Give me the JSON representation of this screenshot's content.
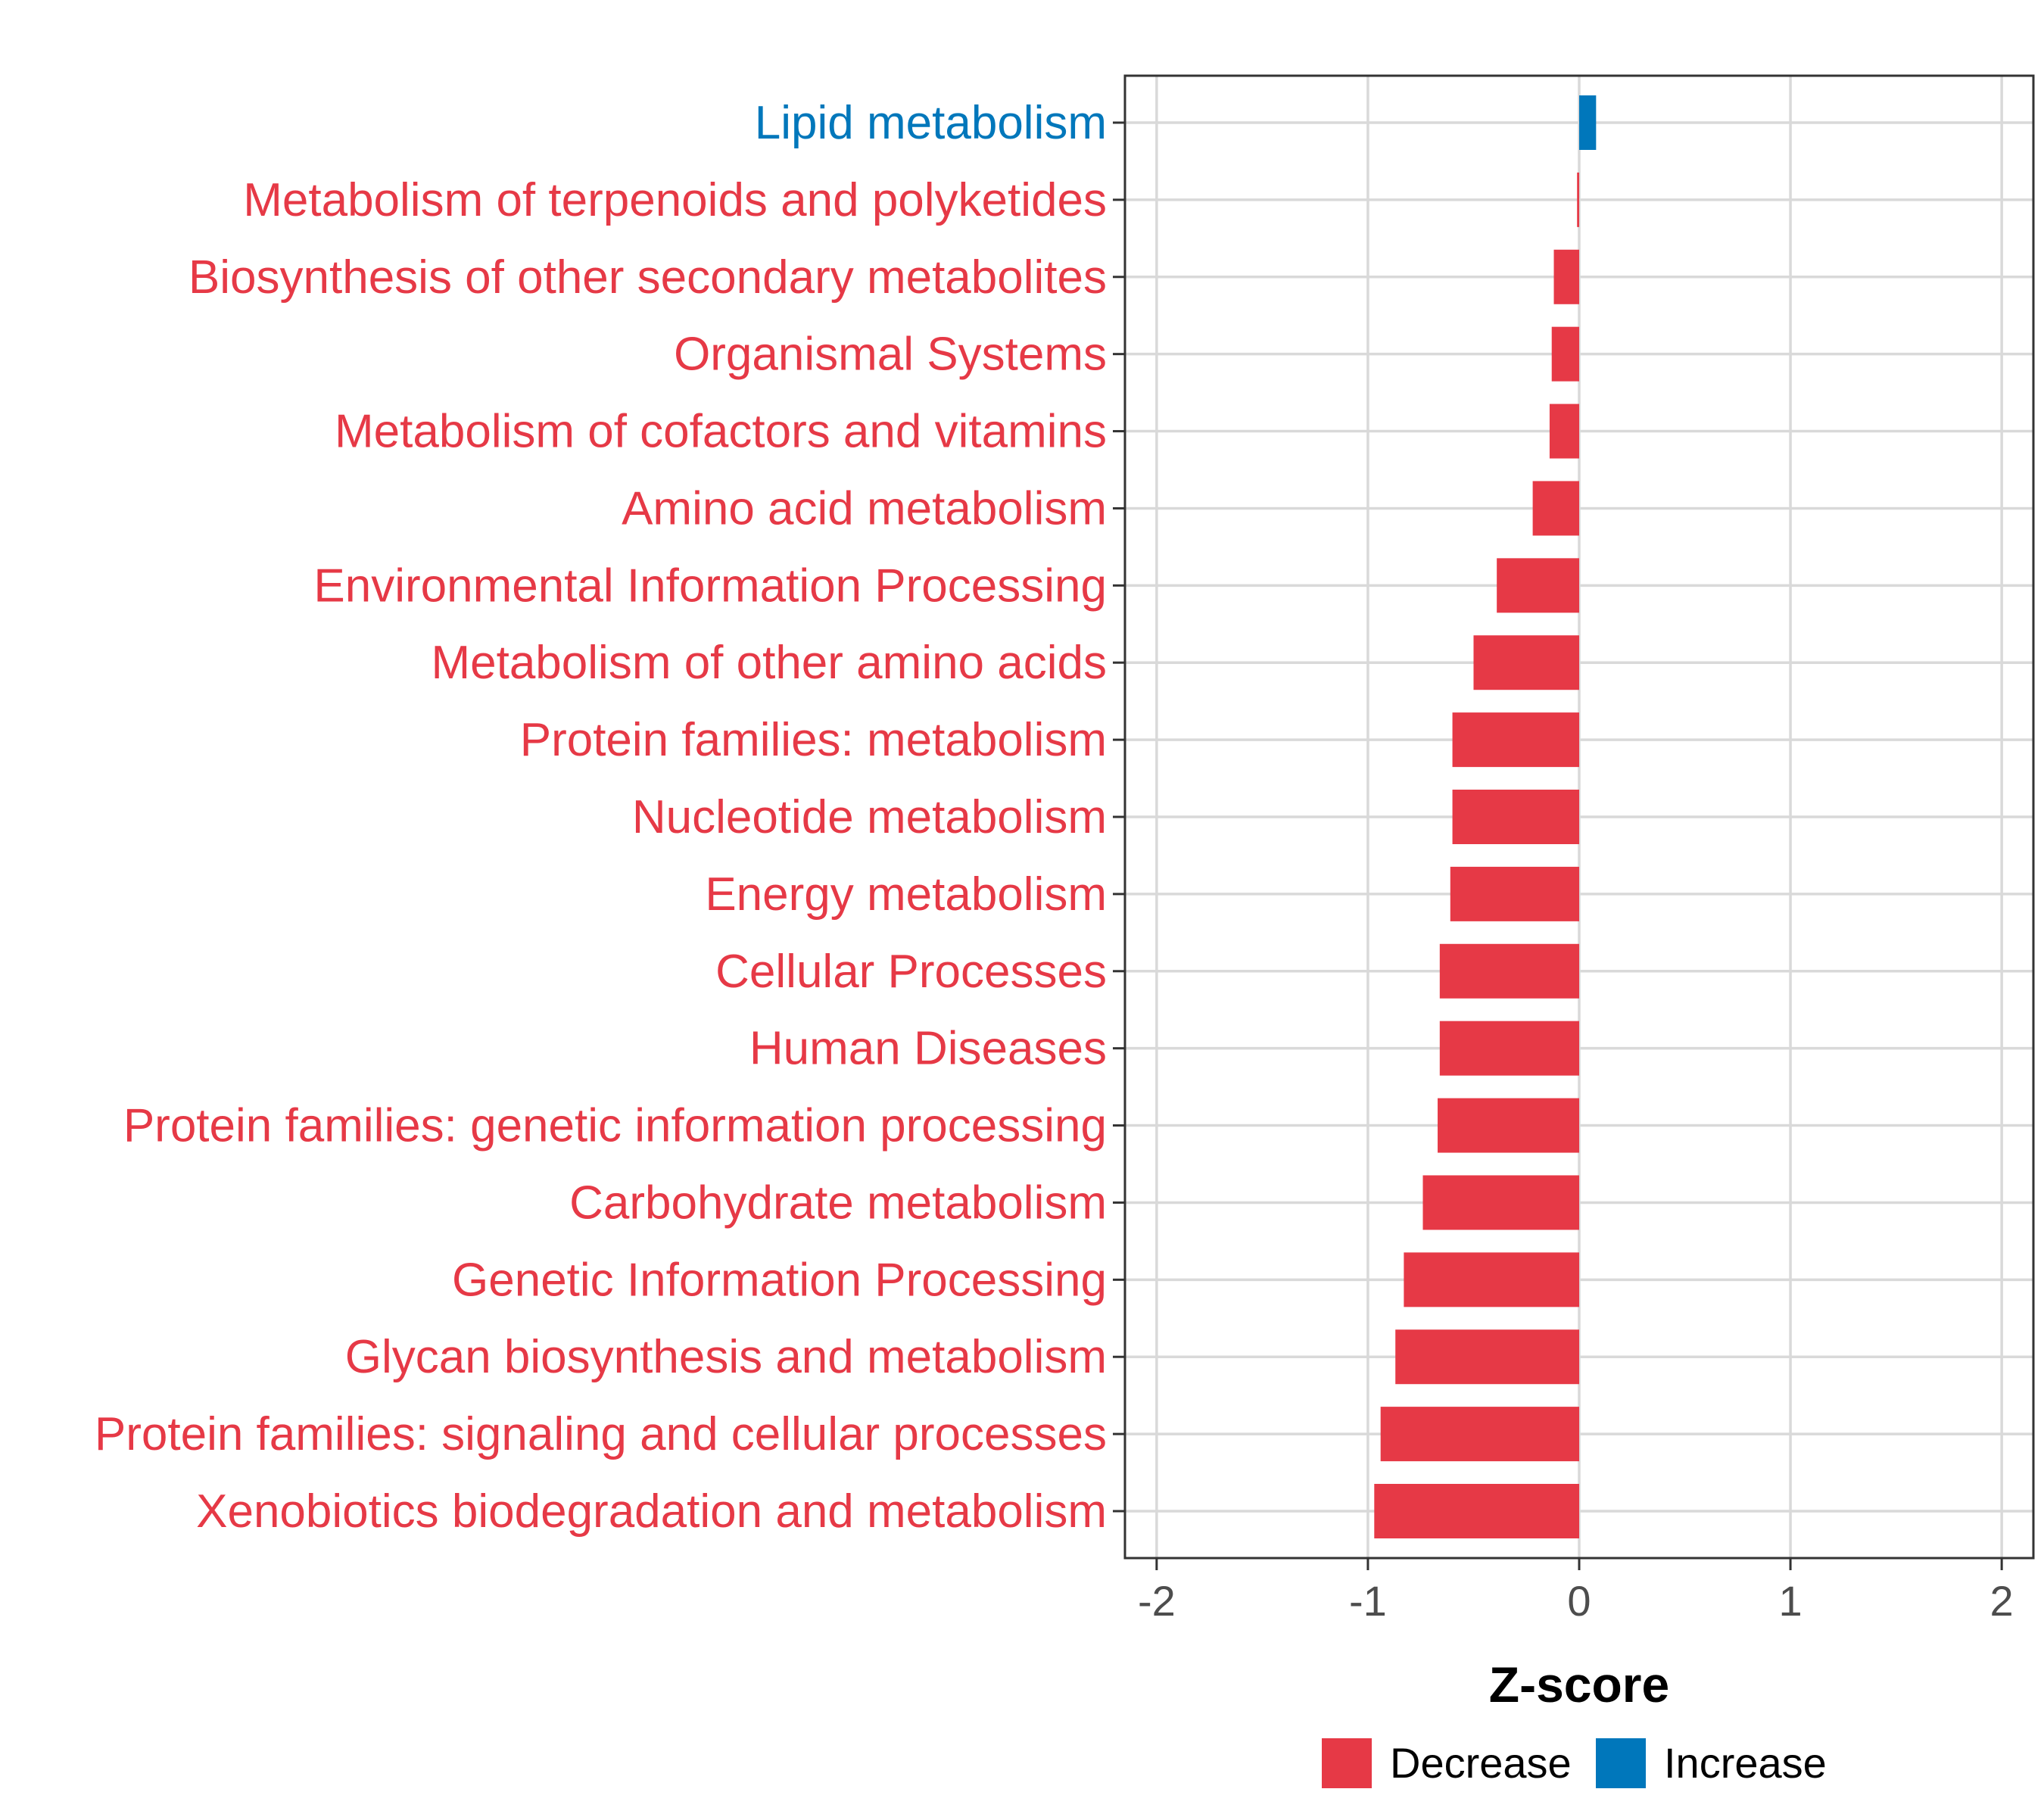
{
  "chart_data": {
    "type": "bar",
    "orientation": "horizontal",
    "title": "",
    "xlabel": "Z-score",
    "ylabel": "",
    "xlim": [
      -2.15,
      2.15
    ],
    "xticks": [
      -2,
      -1,
      0,
      1,
      2
    ],
    "xtick_labels": [
      "-2",
      "-1",
      "0",
      "1",
      "2"
    ],
    "grid": true,
    "legend_position": "bottom",
    "categories": [
      "Lipid metabolism",
      "Metabolism of terpenoids and polyketides",
      "Biosynthesis of other secondary metabolites",
      "Organismal Systems",
      "Metabolism of cofactors and vitamins",
      "Amino acid metabolism",
      "Environmental Information Processing",
      "Metabolism of other amino acids",
      "Protein families: metabolism",
      "Nucleotide metabolism",
      "Energy metabolism",
      "Cellular Processes",
      "Human Diseases",
      "Protein families: genetic information processing",
      "Carbohydrate metabolism",
      "Genetic Information Processing",
      "Glycan biosynthesis and metabolism",
      "Protein families: signaling and cellular processes",
      "Xenobiotics biodegradation and metabolism"
    ],
    "values": [
      0.08,
      -0.01,
      -0.12,
      -0.13,
      -0.14,
      -0.22,
      -0.39,
      -0.5,
      -0.6,
      -0.6,
      -0.61,
      -0.66,
      -0.66,
      -0.67,
      -0.74,
      -0.83,
      -0.87,
      -0.94,
      -0.97
    ],
    "groups": [
      "Increase",
      "Decrease",
      "Decrease",
      "Decrease",
      "Decrease",
      "Decrease",
      "Decrease",
      "Decrease",
      "Decrease",
      "Decrease",
      "Decrease",
      "Decrease",
      "Decrease",
      "Decrease",
      "Decrease",
      "Decrease",
      "Decrease",
      "Decrease",
      "Decrease"
    ],
    "legend": [
      {
        "name": "Decrease",
        "color": "#e63946"
      },
      {
        "name": "Increase",
        "color": "#0077bb"
      }
    ]
  }
}
